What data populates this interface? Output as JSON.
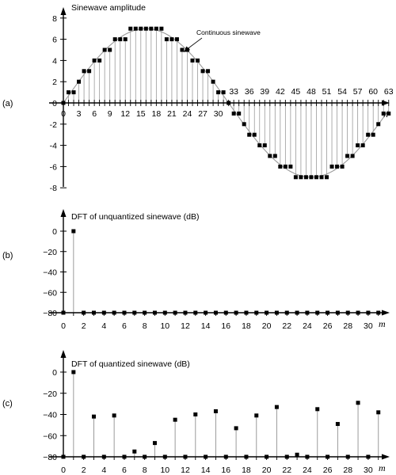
{
  "chart_data": [
    {
      "type": "scatter",
      "panel_label": "(a)",
      "ylabel": "Sinewave amplitude",
      "xlabel": "n",
      "annotation": "Continuous sinewave",
      "x": [
        0,
        1,
        2,
        3,
        4,
        5,
        6,
        7,
        8,
        9,
        10,
        11,
        12,
        13,
        14,
        15,
        16,
        17,
        18,
        19,
        20,
        21,
        22,
        23,
        24,
        25,
        26,
        27,
        28,
        29,
        30,
        31,
        32,
        33,
        34,
        35,
        36,
        37,
        38,
        39,
        40,
        41,
        42,
        43,
        44,
        45,
        46,
        47,
        48,
        49,
        50,
        51,
        52,
        53,
        54,
        55,
        56,
        57,
        58,
        59,
        60,
        61,
        62,
        63
      ],
      "y": [
        0,
        1,
        1,
        2,
        3,
        3,
        4,
        4,
        5,
        5,
        6,
        6,
        6,
        7,
        7,
        7,
        7,
        7,
        7,
        7,
        6,
        6,
        6,
        5,
        5,
        4,
        4,
        3,
        3,
        2,
        1,
        1,
        0,
        -1,
        -1,
        -2,
        -3,
        -3,
        -4,
        -4,
        -5,
        -5,
        -6,
        -6,
        -6,
        -7,
        -7,
        -7,
        -7,
        -7,
        -7,
        -7,
        -6,
        -6,
        -6,
        -5,
        -5,
        -4,
        -4,
        -3,
        -3,
        -2,
        -1,
        -1
      ],
      "xticks": [
        "0",
        "3",
        "6",
        "9",
        "12",
        "15",
        "18",
        "21",
        "24",
        "27",
        "30",
        "33",
        "36",
        "39",
        "42",
        "45",
        "48",
        "51",
        "54",
        "57",
        "60",
        "63"
      ],
      "yticks": [
        "8",
        "6",
        "4",
        "2",
        "0",
        "-2",
        "-4",
        "-6",
        "-8"
      ],
      "ylim": [
        -8,
        8
      ],
      "xlim": [
        0,
        63
      ]
    },
    {
      "type": "scatter",
      "panel_label": "(b)",
      "title": "DFT of unquantized sinewave (dB)",
      "xlabel": "m",
      "x": [
        0,
        1,
        2,
        3,
        4,
        5,
        6,
        7,
        8,
        9,
        10,
        11,
        12,
        13,
        14,
        15,
        16,
        17,
        18,
        19,
        20,
        21,
        22,
        23,
        24,
        25,
        26,
        27,
        28,
        29,
        30,
        31
      ],
      "y": [
        -80,
        0,
        -80,
        -80,
        -80,
        -80,
        -80,
        -80,
        -80,
        -80,
        -80,
        -80,
        -80,
        -80,
        -80,
        -80,
        -80,
        -80,
        -80,
        -80,
        -80,
        -80,
        -80,
        -80,
        -80,
        -80,
        -80,
        -80,
        -80,
        -80,
        -80,
        -80
      ],
      "xticks": [
        "0",
        "2",
        "4",
        "6",
        "8",
        "10",
        "12",
        "14",
        "16",
        "18",
        "20",
        "22",
        "24",
        "26",
        "28",
        "30"
      ],
      "yticks": [
        "0",
        "−20",
        "−40",
        "−60",
        "−80"
      ],
      "ylim": [
        -80,
        0
      ]
    },
    {
      "type": "scatter",
      "panel_label": "(c)",
      "title": "DFT of quantized sinewave (dB)",
      "xlabel": "m",
      "x": [
        0,
        1,
        2,
        3,
        4,
        5,
        6,
        7,
        8,
        9,
        10,
        11,
        12,
        13,
        14,
        15,
        16,
        17,
        18,
        19,
        20,
        21,
        22,
        23,
        24,
        25,
        26,
        27,
        28,
        29,
        30,
        31
      ],
      "y": [
        -80,
        0,
        -80,
        -42,
        -80,
        -41,
        -80,
        -75,
        -80,
        -67,
        -80,
        -45,
        -80,
        -40,
        -80,
        -37,
        -80,
        -53,
        -80,
        -41,
        -80,
        -33,
        -80,
        -78,
        -80,
        -35,
        -80,
        -49,
        -80,
        -29,
        -80,
        -38
      ],
      "xticks": [
        "0",
        "2",
        "4",
        "6",
        "8",
        "10",
        "12",
        "14",
        "16",
        "18",
        "20",
        "22",
        "24",
        "26",
        "28",
        "30"
      ],
      "yticks": [
        "0",
        "−20",
        "−40",
        "−60",
        "−80"
      ],
      "ylim": [
        -80,
        0
      ]
    }
  ]
}
